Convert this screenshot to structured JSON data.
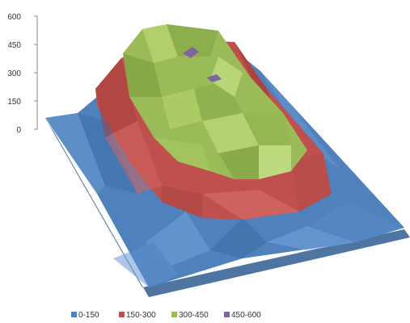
{
  "chart_data": {
    "type": "surface",
    "title": "",
    "xlabel": "",
    "ylabel": "",
    "zlim": [
      0,
      600
    ],
    "z_ticks": [
      "0",
      "150",
      "300",
      "450",
      "600"
    ],
    "bands": [
      {
        "name": "0-150",
        "from": 0,
        "to": 150,
        "color": "#4F81BD"
      },
      {
        "name": "150-300",
        "from": 150,
        "to": 300,
        "color": "#C0504D"
      },
      {
        "name": "300-450",
        "from": 300,
        "to": 450,
        "color": "#9BBB59"
      },
      {
        "name": "450-600",
        "from": 450,
        "to": 600,
        "color": "#8064A2"
      }
    ],
    "legend_position": "bottom",
    "grid": false
  }
}
